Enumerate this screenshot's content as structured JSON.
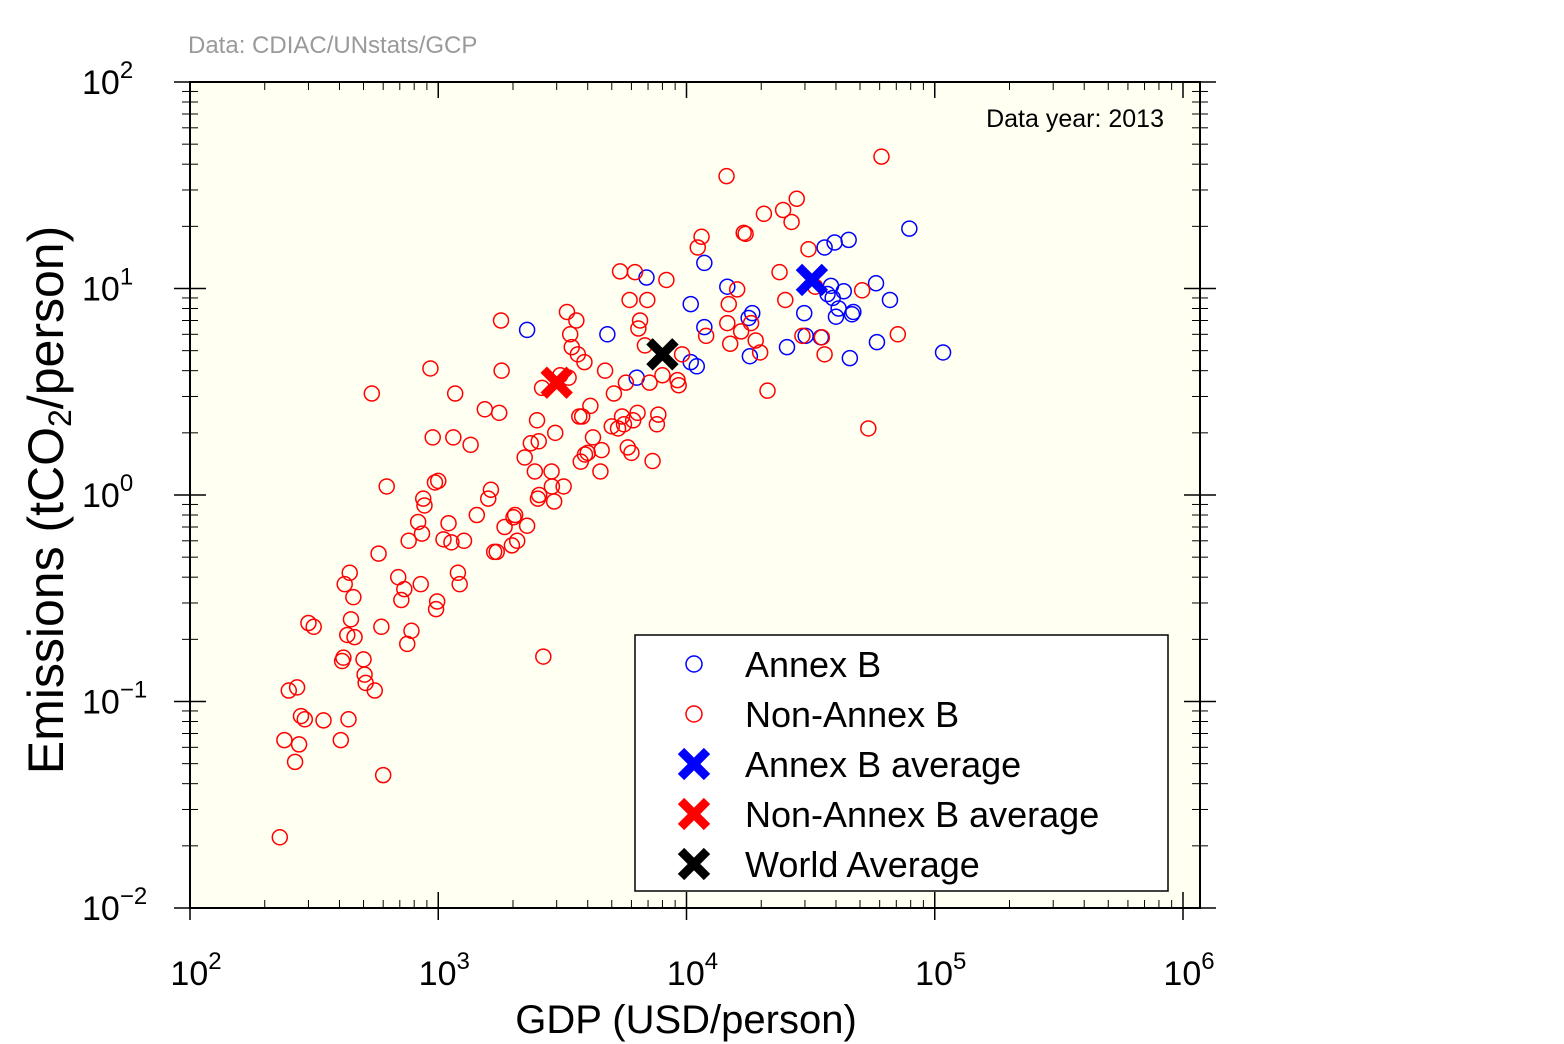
{
  "source_note": "Data: CDIAC/UNstats/GCP",
  "chart_data": {
    "type": "scatter",
    "xlabel": "GDP (USD/person)",
    "ylabel": "Emissions (tCO2/person)",
    "annotation": "Data year: 2013",
    "x_scale": "log",
    "y_scale": "log",
    "xlim": [
      100,
      1000000
    ],
    "ylim": [
      0.01,
      100
    ],
    "x_ticks": [
      "10^2",
      "10^3",
      "10^4",
      "10^5",
      "10^6"
    ],
    "y_ticks": [
      "10^-2",
      "10^-1",
      "10^0",
      "10^1",
      "10^2"
    ],
    "legend_position": "bottom-right",
    "grid": false,
    "colors": {
      "annex_b": "#0000ff",
      "non_annex_b": "#ff0000",
      "world": "#000000",
      "plot_background": "#fffff2"
    },
    "series": [
      {
        "name": "Annex B",
        "marker": "open-circle",
        "points": [
          [
            2280,
            6.3
          ],
          [
            4800,
            6.0
          ],
          [
            6300,
            3.7
          ],
          [
            6900,
            11.3
          ],
          [
            10400,
            8.4
          ],
          [
            10400,
            4.4
          ],
          [
            11000,
            4.2
          ],
          [
            11800,
            13.3
          ],
          [
            11800,
            6.5
          ],
          [
            14600,
            10.2
          ],
          [
            17800,
            7.2
          ],
          [
            18000,
            4.7
          ],
          [
            18400,
            7.6
          ],
          [
            25400,
            5.2
          ],
          [
            29800,
            7.6
          ],
          [
            30200,
            5.9
          ],
          [
            34800,
            5.8
          ],
          [
            36000,
            15.8
          ],
          [
            37000,
            9.4
          ],
          [
            38200,
            10.3
          ],
          [
            38800,
            9.0
          ],
          [
            39500,
            16.7
          ],
          [
            40000,
            7.3
          ],
          [
            41000,
            8.0
          ],
          [
            43000,
            9.7
          ],
          [
            45000,
            17.2
          ],
          [
            45500,
            4.6
          ],
          [
            46400,
            7.5
          ],
          [
            47000,
            7.7
          ],
          [
            58000,
            10.6
          ],
          [
            58500,
            5.5
          ],
          [
            66000,
            8.8
          ],
          [
            79000,
            19.5
          ],
          [
            108000,
            4.9
          ]
        ]
      },
      {
        "name": "Non-Annex B",
        "marker": "open-circle",
        "points": [
          [
            230,
            0.022
          ],
          [
            240,
            0.065
          ],
          [
            250,
            0.113
          ],
          [
            265,
            0.051
          ],
          [
            270,
            0.117
          ],
          [
            275,
            0.062
          ],
          [
            280,
            0.085
          ],
          [
            290,
            0.082
          ],
          [
            300,
            0.24
          ],
          [
            315,
            0.23
          ],
          [
            345,
            0.081
          ],
          [
            405,
            0.065
          ],
          [
            410,
            0.157
          ],
          [
            415,
            0.163
          ],
          [
            420,
            0.37
          ],
          [
            430,
            0.21
          ],
          [
            435,
            0.082
          ],
          [
            440,
            0.42
          ],
          [
            445,
            0.25
          ],
          [
            455,
            0.32
          ],
          [
            460,
            0.205
          ],
          [
            500,
            0.16
          ],
          [
            505,
            0.135
          ],
          [
            510,
            0.123
          ],
          [
            540,
            3.1
          ],
          [
            555,
            0.113
          ],
          [
            575,
            0.52
          ],
          [
            590,
            0.23
          ],
          [
            600,
            0.044
          ],
          [
            620,
            1.1
          ],
          [
            690,
            0.4
          ],
          [
            710,
            0.31
          ],
          [
            730,
            0.35
          ],
          [
            750,
            0.19
          ],
          [
            760,
            0.6
          ],
          [
            780,
            0.22
          ],
          [
            830,
            0.74
          ],
          [
            850,
            0.37
          ],
          [
            860,
            0.65
          ],
          [
            870,
            0.96
          ],
          [
            880,
            0.89
          ],
          [
            930,
            4.1
          ],
          [
            950,
            1.9
          ],
          [
            970,
            1.15
          ],
          [
            980,
            0.28
          ],
          [
            990,
            0.305
          ],
          [
            1000,
            1.17
          ],
          [
            1050,
            0.61
          ],
          [
            1100,
            0.73
          ],
          [
            1130,
            0.59
          ],
          [
            1150,
            1.9
          ],
          [
            1170,
            3.1
          ],
          [
            1200,
            0.42
          ],
          [
            1220,
            0.37
          ],
          [
            1270,
            0.6
          ],
          [
            1350,
            1.75
          ],
          [
            1430,
            0.8
          ],
          [
            1540,
            2.6
          ],
          [
            1590,
            0.96
          ],
          [
            1630,
            1.06
          ],
          [
            1680,
            0.53
          ],
          [
            1720,
            0.53
          ],
          [
            1760,
            2.5
          ],
          [
            1790,
            7.0
          ],
          [
            1800,
            4.0
          ],
          [
            1850,
            0.7
          ],
          [
            1980,
            0.57
          ],
          [
            2010,
            0.78
          ],
          [
            2040,
            0.8
          ],
          [
            2080,
            0.6
          ],
          [
            2230,
            1.52
          ],
          [
            2280,
            0.71
          ],
          [
            2360,
            1.78
          ],
          [
            2450,
            1.3
          ],
          [
            2500,
            2.3
          ],
          [
            2520,
            0.96
          ],
          [
            2540,
            1.82
          ],
          [
            2550,
            1.0
          ],
          [
            2620,
            3.3
          ],
          [
            2650,
            0.165
          ],
          [
            2860,
            1.3
          ],
          [
            2870,
            1.1
          ],
          [
            2930,
            0.93
          ],
          [
            2960,
            2.0
          ],
          [
            3100,
            3.8
          ],
          [
            3200,
            1.1
          ],
          [
            3300,
            7.7
          ],
          [
            3350,
            3.7
          ],
          [
            3400,
            6.0
          ],
          [
            3450,
            5.2
          ],
          [
            3600,
            7.0
          ],
          [
            3650,
            4.8
          ],
          [
            3700,
            2.4
          ],
          [
            3750,
            1.45
          ],
          [
            3800,
            2.4
          ],
          [
            3880,
            4.4
          ],
          [
            3900,
            1.57
          ],
          [
            4000,
            1.6
          ],
          [
            4100,
            2.7
          ],
          [
            4200,
            1.9
          ],
          [
            4500,
            1.3
          ],
          [
            4550,
            1.65
          ],
          [
            4700,
            4.0
          ],
          [
            5000,
            2.15
          ],
          [
            5100,
            3.1
          ],
          [
            5300,
            2.1
          ],
          [
            5400,
            12.1
          ],
          [
            5500,
            2.4
          ],
          [
            5600,
            2.2
          ],
          [
            5700,
            3.5
          ],
          [
            5800,
            1.7
          ],
          [
            5900,
            8.8
          ],
          [
            6000,
            1.6
          ],
          [
            6100,
            2.3
          ],
          [
            6200,
            12.0
          ],
          [
            6350,
            2.5
          ],
          [
            6400,
            6.4
          ],
          [
            6500,
            7.0
          ],
          [
            6800,
            5.3
          ],
          [
            6950,
            8.8
          ],
          [
            7100,
            3.5
          ],
          [
            7300,
            1.46
          ],
          [
            7600,
            2.2
          ],
          [
            7700,
            2.45
          ],
          [
            8000,
            3.8
          ],
          [
            8300,
            11.0
          ],
          [
            9200,
            3.6
          ],
          [
            9300,
            3.4
          ],
          [
            9600,
            4.8
          ],
          [
            11100,
            15.8
          ],
          [
            11500,
            17.8
          ],
          [
            12000,
            5.9
          ],
          [
            14500,
            35.0
          ],
          [
            14600,
            6.8
          ],
          [
            14800,
            8.4
          ],
          [
            15000,
            5.4
          ],
          [
            16000,
            9.9
          ],
          [
            16600,
            6.2
          ],
          [
            17000,
            18.6
          ],
          [
            17300,
            18.4
          ],
          [
            18200,
            6.8
          ],
          [
            19000,
            5.6
          ],
          [
            19800,
            4.9
          ],
          [
            20500,
            23.0
          ],
          [
            21200,
            3.2
          ],
          [
            23700,
            12.0
          ],
          [
            24500,
            24.0
          ],
          [
            25000,
            8.8
          ],
          [
            26500,
            21.0
          ],
          [
            27800,
            27.2
          ],
          [
            29300,
            5.9
          ],
          [
            31000,
            15.5
          ],
          [
            33000,
            10.2
          ],
          [
            35100,
            5.8
          ],
          [
            36000,
            4.8
          ],
          [
            51000,
            9.8
          ],
          [
            54000,
            2.1
          ],
          [
            61000,
            43.5
          ],
          [
            71000,
            6.0
          ]
        ]
      },
      {
        "name": "Annex B average",
        "marker": "filled-cross",
        "points": [
          [
            32000,
            11.0
          ]
        ]
      },
      {
        "name": "Non-Annex B average",
        "marker": "filled-cross",
        "points": [
          [
            3000,
            3.5
          ]
        ]
      },
      {
        "name": "World Average",
        "marker": "filled-cross",
        "points": [
          [
            8000,
            4.8
          ]
        ]
      }
    ]
  }
}
